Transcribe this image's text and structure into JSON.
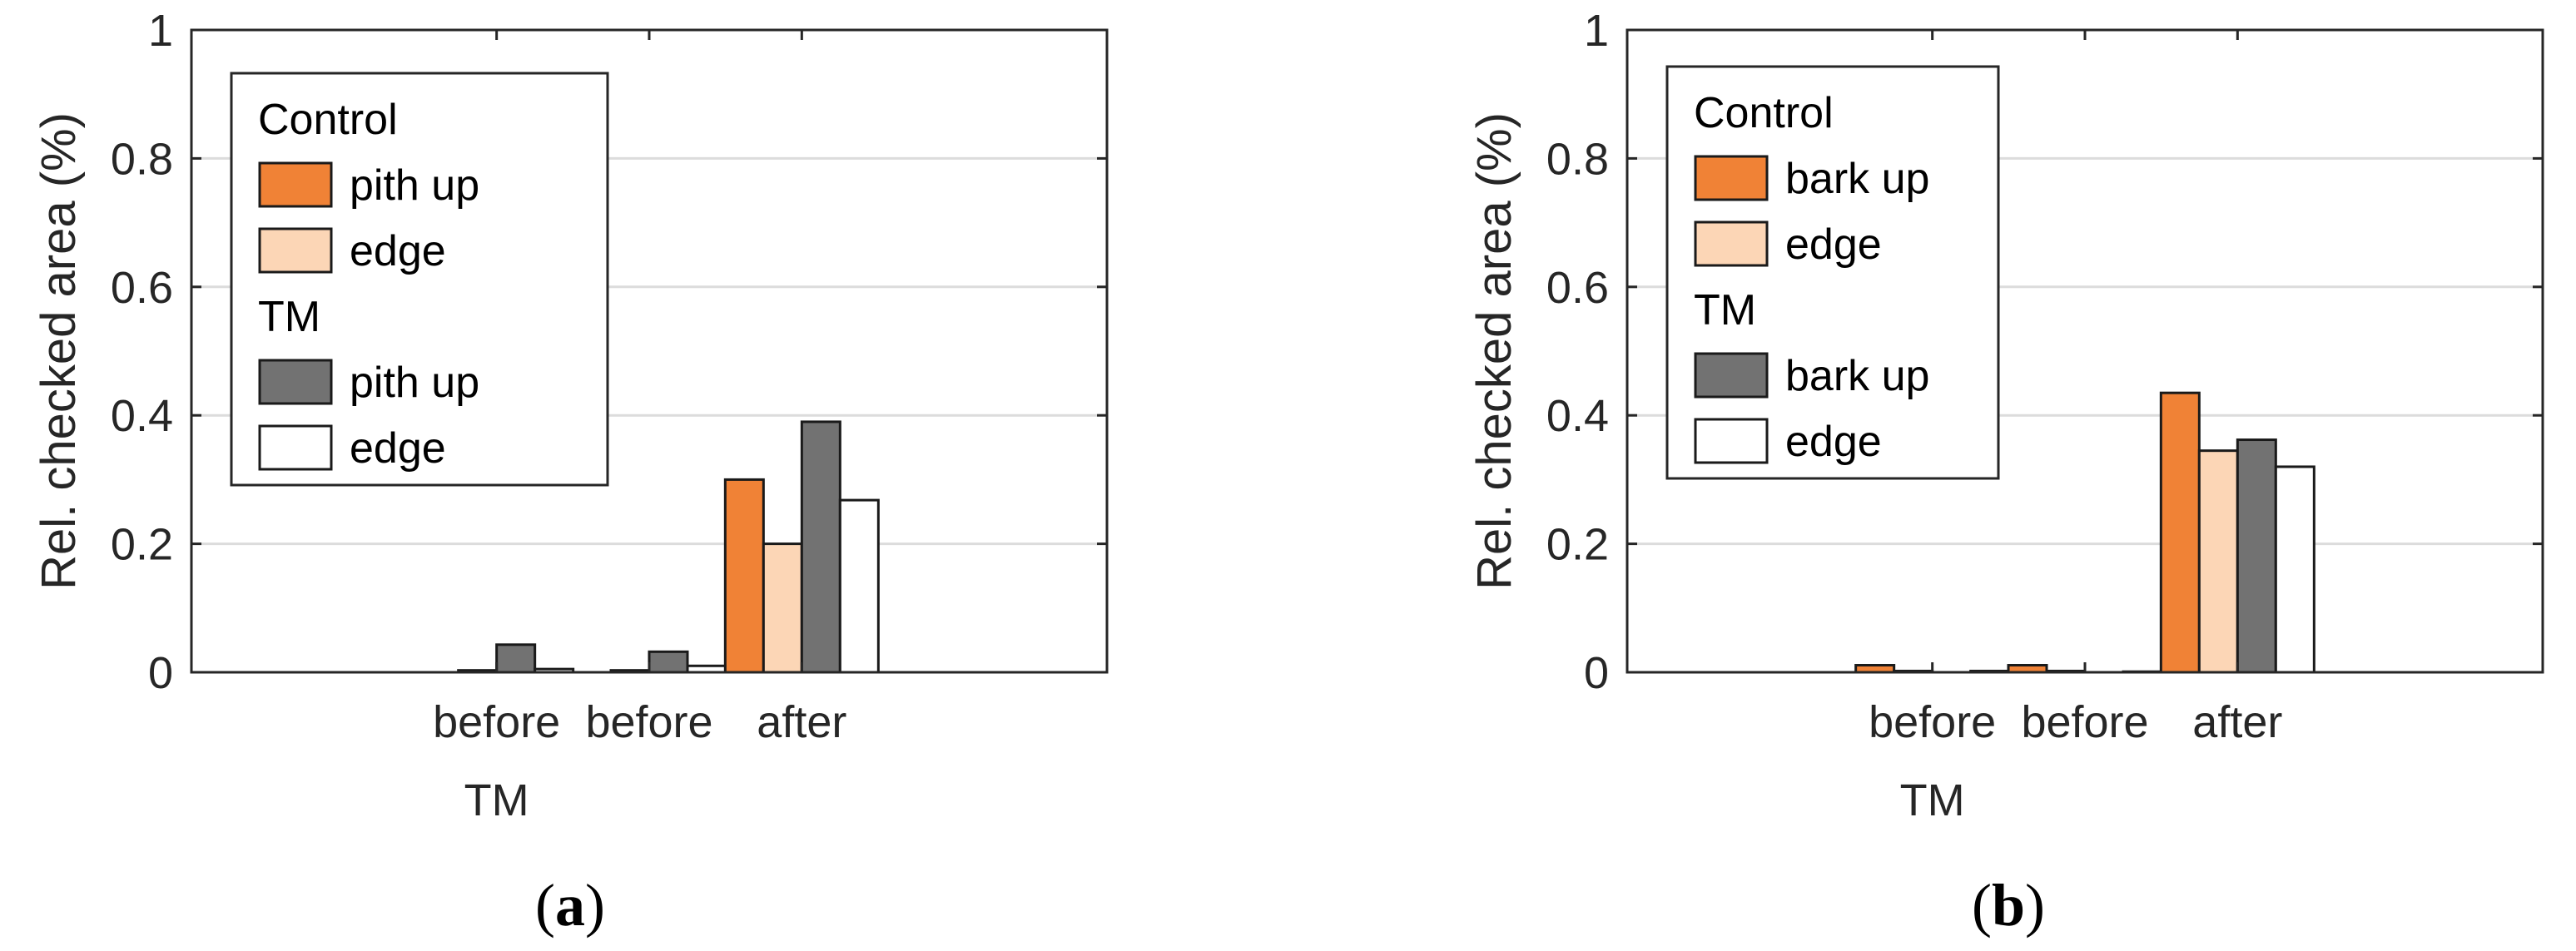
{
  "chart_data": [
    {
      "type": "bar",
      "panel_label": "a",
      "ylabel": "Rel. checked area (%)",
      "xlabel": "",
      "ylim": [
        0,
        1
      ],
      "yticks": [
        0,
        0.2,
        0.4,
        0.6,
        0.8,
        1
      ],
      "ytick_labels": [
        "0",
        "0.2",
        "0.4",
        "0.6",
        "0.8",
        "1"
      ],
      "grid": true,
      "categories": [
        {
          "lines": [
            "before",
            "TM"
          ]
        },
        {
          "lines": [
            "before"
          ]
        },
        {
          "lines": [
            "after"
          ]
        }
      ],
      "series": [
        {
          "name": "pith up",
          "group": "Control",
          "color": "#f08236",
          "values": [
            0.0,
            0.0,
            0.3
          ]
        },
        {
          "name": "edge",
          "group": "Control",
          "color": "#fcd6b6",
          "values": [
            0.003,
            0.003,
            0.2
          ]
        },
        {
          "name": "pith up",
          "group": "TM",
          "color": "#727272",
          "values": [
            0.043,
            0.032,
            0.39
          ]
        },
        {
          "name": "edge",
          "group": "TM",
          "color": "#ffffff",
          "values": [
            0.005,
            0.01,
            0.268
          ]
        }
      ],
      "legend": {
        "placement": "top-left",
        "entries": [
          {
            "kind": "header",
            "text": "Control"
          },
          {
            "kind": "item",
            "text": "pith up",
            "color": "#f08236"
          },
          {
            "kind": "item",
            "text": "edge",
            "color": "#fcd6b6"
          },
          {
            "kind": "header",
            "text": "TM"
          },
          {
            "kind": "item",
            "text": "pith up",
            "color": "#727272"
          },
          {
            "kind": "item",
            "text": "edge",
            "color": "#ffffff"
          }
        ]
      }
    },
    {
      "type": "bar",
      "panel_label": "b",
      "ylabel": "Rel. checked area (%)",
      "xlabel": "",
      "ylim": [
        0,
        1
      ],
      "yticks": [
        0,
        0.2,
        0.4,
        0.6,
        0.8,
        1
      ],
      "ytick_labels": [
        "0",
        "0.2",
        "0.4",
        "0.6",
        "0.8",
        "1"
      ],
      "grid": true,
      "categories": [
        {
          "lines": [
            "before",
            "TM"
          ]
        },
        {
          "lines": [
            "before"
          ]
        },
        {
          "lines": [
            "after"
          ]
        }
      ],
      "series": [
        {
          "name": "bark up",
          "group": "Control",
          "color": "#f08236",
          "values": [
            0.011,
            0.011,
            0.435
          ]
        },
        {
          "name": "edge",
          "group": "Control",
          "color": "#fcd6b6",
          "values": [
            0.002,
            0.002,
            0.345
          ]
        },
        {
          "name": "bark up",
          "group": "TM",
          "color": "#727272",
          "values": [
            0.0,
            0.0,
            0.362
          ]
        },
        {
          "name": "edge",
          "group": "TM",
          "color": "#ffffff",
          "values": [
            0.002,
            0.001,
            0.32
          ]
        }
      ],
      "legend": {
        "placement": "top-left",
        "entries": [
          {
            "kind": "header",
            "text": "Control"
          },
          {
            "kind": "item",
            "text": "bark up",
            "color": "#f08236"
          },
          {
            "kind": "item",
            "text": "edge",
            "color": "#fcd6b6"
          },
          {
            "kind": "header",
            "text": "TM"
          },
          {
            "kind": "item",
            "text": "bark up",
            "color": "#727272"
          },
          {
            "kind": "item",
            "text": "edge",
            "color": "#ffffff"
          }
        ]
      }
    }
  ]
}
